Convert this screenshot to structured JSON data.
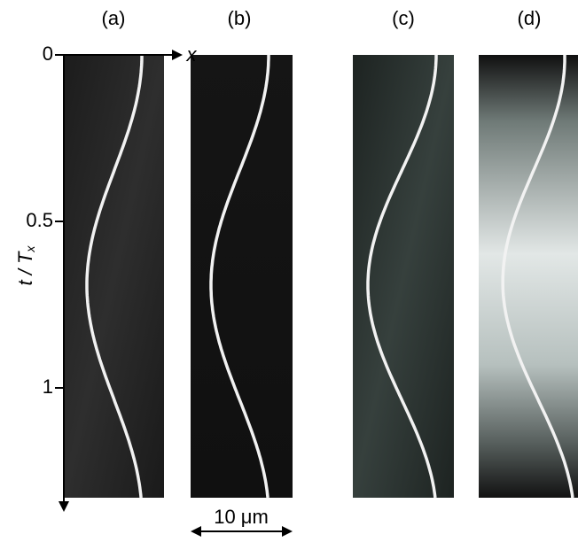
{
  "panels": [
    {
      "label": "(a)"
    },
    {
      "label": "(b)"
    },
    {
      "label": "(c)"
    },
    {
      "label": "(d)"
    }
  ],
  "axes": {
    "x_label": "x",
    "t_label": "t / T",
    "t_label_sub": "x",
    "t_ticks": [
      0,
      0.5,
      1
    ]
  },
  "scale_bar": {
    "label": "10 μm"
  }
}
